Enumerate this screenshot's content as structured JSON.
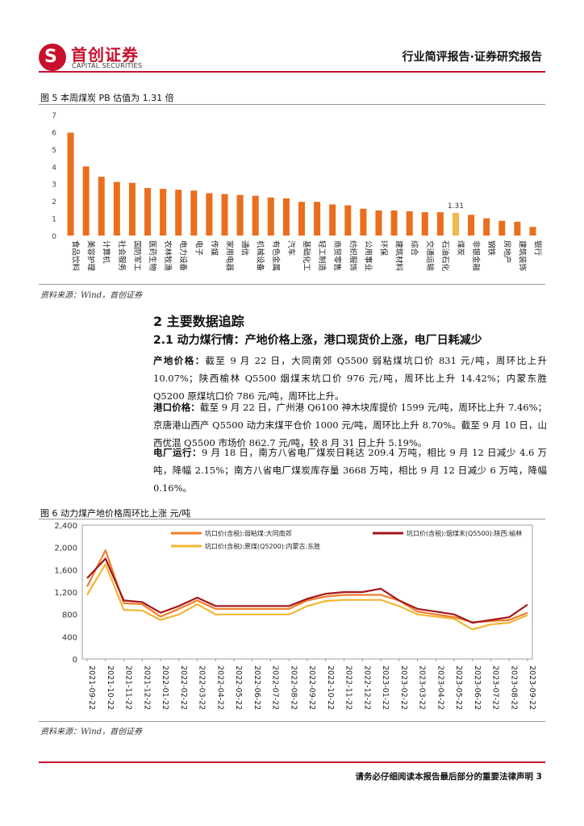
{
  "header": {
    "logo_cn": "首创证券",
    "logo_en": "CAPITAL SECURITIES",
    "report_type": "行业简评报告·证券研究报告"
  },
  "figure5": {
    "title": "图 5 本周煤炭 PB 估值为 1.31 倍",
    "source": "资料来源：Wind，首创证券",
    "chart_data": {
      "type": "bar",
      "categories": [
        "食品饮料",
        "美容护理",
        "计算机",
        "社会服务",
        "国防军工",
        "医药生物",
        "农林牧渔",
        "电力设备",
        "电子",
        "传媒",
        "家用电器",
        "通信",
        "机械设备",
        "有色金属",
        "汽车",
        "基础化工",
        "轻工制造",
        "商贸零售",
        "纺织服饰",
        "公用事业",
        "环保",
        "建筑材料",
        "综合",
        "交通运输",
        "石油石化",
        "煤炭",
        "非银金融",
        "钢铁",
        "房地产",
        "建筑装饰",
        "银行"
      ],
      "values": [
        5.95,
        4.0,
        3.4,
        3.1,
        3.05,
        2.75,
        2.7,
        2.65,
        2.6,
        2.45,
        2.4,
        2.35,
        2.3,
        2.2,
        2.15,
        1.95,
        1.95,
        1.8,
        1.75,
        1.55,
        1.45,
        1.45,
        1.4,
        1.35,
        1.35,
        1.31,
        1.2,
        1.0,
        0.85,
        0.8,
        0.5
      ],
      "highlight_category": "煤炭",
      "highlight_label": "1.31",
      "y_ticks": [
        "0",
        "1",
        "2",
        "3",
        "4",
        "5",
        "6",
        "7"
      ],
      "ylim": [
        0,
        7
      ],
      "colors": {
        "bar": "#ea6e1e",
        "highlight": "#f2b84b"
      }
    }
  },
  "section": {
    "h2": "2 主要数据追踪",
    "h3": "2.1 动力煤行情：产地价格上涨，港口现货价上涨，电厂日耗减少",
    "p1_label": "产地价格：",
    "p1_text": "截至 9 月 22 日，大同南郊 Q5500 弱粘煤坑口价 831 元/吨，周环比上升 10.07%；陕西榆林 Q5500 烟煤末坑口价 976 元/吨，周环比上升 14.42%；内蒙东胜 Q5200 原煤坑口价 786 元/吨，周环比上升。",
    "p2_label": "港口价格：",
    "p2_text": "截至 9 月 22 日，广州港 Q6100 神木块库提价 1599 元/吨，周环比上升 7.46%；京唐港山西产 Q5500 动力末煤平仓价 1000 元/吨，周环比上升 8.70%。截至 9 月 10 日，山西优混 Q5500 市场价 862.7 元/吨，较 8 月 31 日上升 5.19%。",
    "p3_label": "电厂运行：",
    "p3_text": "9 月 18 日，南方八省电厂煤炭日耗达 209.4 万吨，相比 9 月 12 日减少 4.6 万吨，降幅 2.15%；南方八省电厂煤炭库存量 3668 万吨，相比 9 月 12 日减少 6 万吨，降幅 0.16%。"
  },
  "figure6": {
    "title": "图 6 动力煤产地价格周环比上涨  元/吨",
    "source": "资料来源：Wind，首创证券",
    "chart_data": {
      "type": "line",
      "x": [
        "2021-09-22",
        "2021-10-22",
        "2021-11-22",
        "2021-12-22",
        "2022-01-22",
        "2022-02-22",
        "2022-03-22",
        "2022-04-22",
        "2022-05-22",
        "2022-06-22",
        "2022-07-22",
        "2022-08-22",
        "2022-09-22",
        "2022-10-22",
        "2022-11-22",
        "2022-12-22",
        "2023-01-22",
        "2023-02-22",
        "2023-03-22",
        "2023-04-22",
        "2023-05-22",
        "2023-06-22",
        "2023-07-22",
        "2023-08-22",
        "2023-09-22"
      ],
      "y_ticks": [
        "0",
        "400",
        "800",
        "1,200",
        "1,600",
        "2,000",
        "2,400"
      ],
      "ylim": [
        0,
        2400
      ],
      "series": [
        {
          "name": "坑口价(含税):弱粘煤:大同南郊",
          "color": "#ef7d2b",
          "values": [
            1300,
            1950,
            1000,
            980,
            760,
            900,
            1050,
            900,
            900,
            900,
            900,
            900,
            1050,
            1120,
            1150,
            1150,
            1150,
            1050,
            850,
            800,
            750,
            660,
            680,
            700,
            831
          ]
        },
        {
          "name": "坑口价(含税):烟煤末(Q5500):陕西:榆林",
          "color": "#a4161a",
          "values": [
            1450,
            1800,
            1050,
            1020,
            830,
            950,
            1100,
            950,
            950,
            950,
            950,
            950,
            1080,
            1170,
            1200,
            1200,
            1260,
            1050,
            900,
            850,
            800,
            650,
            700,
            750,
            976
          ]
        },
        {
          "name": "坑口价(含税):原煤(Q5200):内蒙古:东胜",
          "color": "#f2b632",
          "values": [
            1150,
            1700,
            880,
            870,
            700,
            800,
            980,
            800,
            800,
            800,
            800,
            800,
            950,
            1040,
            1060,
            1060,
            1060,
            950,
            800,
            760,
            720,
            530,
            620,
            650,
            786
          ]
        }
      ]
    }
  },
  "footer": {
    "text": "请务必仔细阅读本报告最后部分的重要法律声明 3"
  }
}
